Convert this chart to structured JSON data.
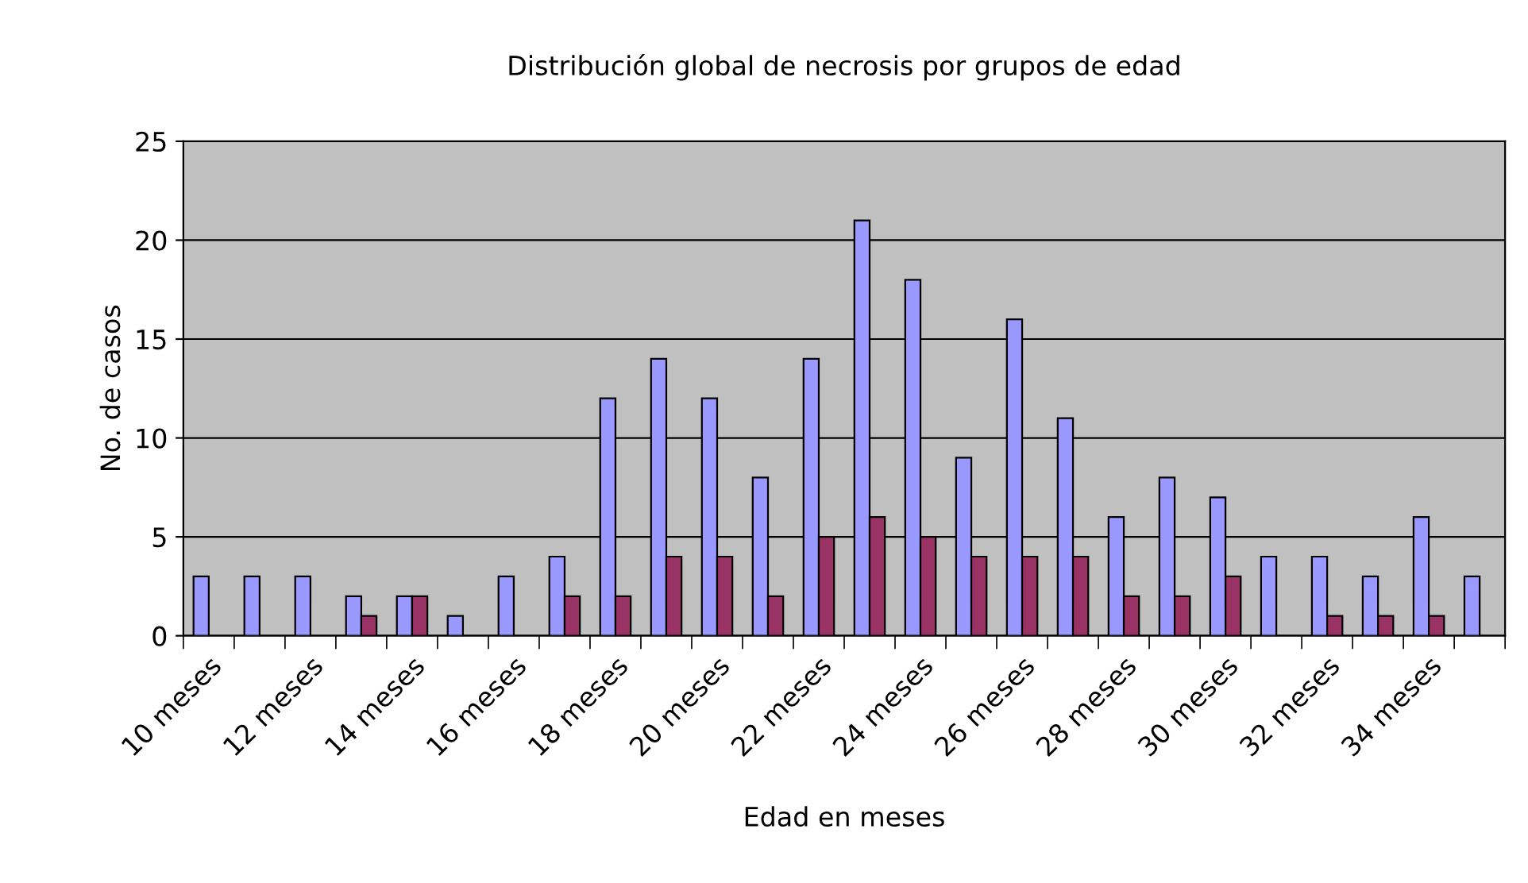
{
  "chart_data": {
    "type": "bar",
    "title": "Distribución global de necrosis por grupos de edad",
    "xlabel": "Edad en meses",
    "ylabel": "No. de casos",
    "categories": [
      "10 meses",
      null,
      "12 meses",
      null,
      "14 meses",
      null,
      "16 meses",
      null,
      "18 meses",
      null,
      "20 meses",
      null,
      "22 meses",
      null,
      "24 meses",
      null,
      "26 meses",
      null,
      "28 meses",
      null,
      "30 meses",
      null,
      "32 meses",
      null,
      "34 meses",
      null
    ],
    "series": [
      {
        "color": "#9999ff",
        "values": [
          3,
          3,
          3,
          2,
          2,
          1,
          3,
          4,
          12,
          14,
          12,
          8,
          14,
          21,
          18,
          9,
          16,
          11,
          6,
          8,
          7,
          4,
          4,
          3,
          6,
          3
        ]
      },
      {
        "color": "#993366",
        "values": [
          null,
          null,
          null,
          1,
          2,
          null,
          null,
          2,
          2,
          4,
          4,
          2,
          5,
          6,
          5,
          4,
          4,
          4,
          2,
          2,
          3,
          null,
          1,
          1,
          1,
          null
        ]
      }
    ],
    "ylim": [
      0,
      25
    ],
    "yticks": [
      0,
      5,
      10,
      15,
      20,
      25
    ],
    "grid": "y",
    "legend": false
  }
}
